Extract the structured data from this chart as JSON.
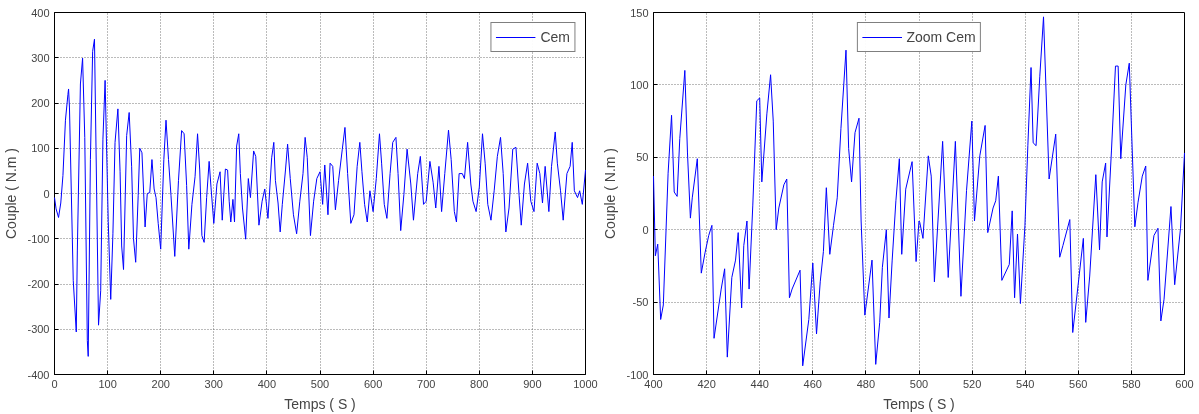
{
  "chart_data": [
    {
      "type": "line",
      "xlabel": "Temps ( S )",
      "ylabel": "Couple ( N.m )",
      "xlim": [
        0,
        1000
      ],
      "ylim": [
        -400,
        400
      ],
      "xticks": [
        0,
        100,
        200,
        300,
        400,
        500,
        600,
        700,
        800,
        900,
        1000
      ],
      "yticks": [
        -400,
        -300,
        -200,
        -100,
        0,
        100,
        200,
        300,
        400
      ],
      "grid": true,
      "legend": "top right",
      "x": [
        0,
        3,
        7.6,
        11.8,
        15.9,
        20.6,
        25.3,
        26.5,
        28.2,
        35.3,
        41,
        43,
        48.8,
        52.9,
        57,
        61.8,
        63.5,
        67.6,
        71.8,
        75.3,
        82.9,
        87,
        91.2,
        95.3,
        101.2,
        105.9,
        110,
        114,
        119.4,
        123.5,
        126.5,
        130,
        135.9,
        140.6,
        145.3,
        148.8,
        152.9,
        157.6,
        160.6,
        164.7,
        170.6,
        174.7,
        179.4,
        183.5,
        187.6,
        191.2,
        195.3,
        200,
        205.9,
        210,
        214.7,
        219.4,
        226.5,
        233.5,
        239.4,
        244.1,
        248.8,
        252.9,
        258.8,
        264.7,
        269.4,
        273.5,
        277.6,
        281.8,
        286.5,
        291.2,
        294.7,
        300,
        305.9,
        311.8,
        315.9,
        321.8,
        326,
        329,
        332,
        336,
        339,
        343,
        347,
        350,
        354,
        360,
        365,
        369,
        375,
        379,
        385,
        391,
        396,
        402,
        409,
        413,
        416,
        421,
        425,
        429,
        435,
        439,
        444,
        450,
        456,
        462,
        468,
        472,
        476,
        482,
        488,
        494,
        500,
        505,
        509,
        515,
        519,
        524,
        529,
        535,
        542,
        547,
        552,
        558,
        564,
        570,
        575,
        579,
        584,
        589,
        594,
        600,
        606,
        612,
        616,
        621,
        626,
        632,
        637,
        643,
        647,
        652,
        658,
        664,
        671,
        676,
        684,
        689,
        695,
        700,
        707,
        713,
        718,
        724,
        729,
        735,
        742,
        747,
        753,
        757,
        762,
        768,
        772,
        778,
        784,
        788,
        794,
        800,
        806,
        811,
        816,
        822,
        828,
        834,
        840,
        845,
        850,
        856,
        863,
        869,
        875,
        879,
        885,
        891,
        897,
        903,
        909,
        914,
        919,
        924,
        931,
        936,
        943,
        947,
        953,
        958,
        965,
        971,
        975,
        979,
        985,
        989,
        994,
        1000
      ],
      "series": [
        {
          "name": "Cem",
          "color": "#0000ff",
          "values": [
            -9,
            -34,
            -53,
            -21,
            40,
            162,
            219,
            231,
            189,
            -192,
            -306,
            -127,
            242,
            299,
            124,
            -325,
            -360,
            75,
            314,
            341,
            -291,
            -215,
            120,
            250,
            -62,
            -234,
            -89,
            113,
            187,
            48,
            -116,
            -168,
            128,
            179,
            59,
            -100,
            -152,
            -5,
            100,
            90,
            -74,
            0,
            2,
            75,
            10,
            -9,
            -66,
            -123,
            75,
            162,
            75,
            -5,
            -139,
            29,
            139,
            132,
            18,
            -123,
            -24,
            37,
            132,
            52,
            -93,
            -108,
            -9,
            71,
            14,
            -66,
            21,
            48,
            -59,
            54,
            52,
            -17,
            -63,
            -13,
            -63,
            105,
            132,
            44,
            -32,
            -101,
            33,
            -9,
            94,
            82,
            -70,
            -17,
            10,
            -55,
            79,
            113,
            29,
            -21,
            -85,
            -24,
            52,
            109,
            33,
            -47,
            -89,
            -17,
            44,
            124,
            79,
            -93,
            -17,
            33,
            48,
            -24,
            63,
            -47,
            67,
            60,
            -36,
            29,
            98,
            146,
            44,
            -66,
            -47,
            60,
            113,
            48,
            -24,
            -63,
            6,
            -40,
            33,
            132,
            67,
            -24,
            -55,
            44,
            113,
            124,
            44,
            -82,
            -2,
            98,
            21,
            -59,
            44,
            82,
            -24,
            -17,
            71,
            25,
            -32,
            60,
            -40,
            44,
            140,
            75,
            -40,
            -63,
            44,
            44,
            33,
            113,
            21,
            -17,
            -40,
            14,
            132,
            67,
            -24,
            -59,
            6,
            82,
            124,
            44,
            -85,
            -32,
            98,
            102,
            -5,
            -70,
            21,
            67,
            -17,
            -40,
            67,
            44,
            -21,
            60,
            -40,
            60,
            136,
            67,
            6,
            -59,
            44,
            60,
            113,
            6,
            -9,
            6,
            -24,
            52
          ]
        }
      ]
    },
    {
      "type": "line",
      "xlabel": "Temps ( S )",
      "ylabel": "Couple ( N.m )",
      "xlim": [
        400,
        600
      ],
      "ylim": [
        -100,
        150
      ],
      "xticks": [
        400,
        420,
        440,
        460,
        480,
        500,
        520,
        540,
        560,
        580,
        600
      ],
      "yticks": [
        -100,
        -50,
        0,
        50,
        100,
        150
      ],
      "grid": true,
      "legend": "top",
      "x": [
        400,
        400.7,
        401.6,
        402.7,
        403.7,
        405.5,
        406.8,
        407.8,
        408.9,
        409.9,
        411.8,
        412.8,
        413.9,
        414.6,
        416.5,
        418,
        419.4,
        420.8,
        422,
        422.8,
        425.5,
        426.8,
        427.8,
        429.5,
        430.9,
        431.9,
        433.2,
        434,
        435.2,
        436,
        437.4,
        438.9,
        440,
        440.8,
        442.7,
        444.1,
        445.1,
        446.2,
        447.2,
        449.1,
        450.2,
        451.2,
        452.2,
        455.2,
        456.2,
        458.5,
        460,
        461.4,
        462.8,
        464,
        465.1,
        466.4,
        467.8,
        469.2,
        470.6,
        472.5,
        473.5,
        474.6,
        475.9,
        477.4,
        478.2,
        479.6,
        482.3,
        483.7,
        485.2,
        486.2,
        487.7,
        488.7,
        489.9,
        491.3,
        492.6,
        493.5,
        495,
        497.4,
        498.9,
        500,
        500.3,
        501.5,
        503.5,
        504.6,
        505.8,
        508.9,
        511,
        513.7,
        515.8,
        517.9,
        519.9,
        520.9,
        522.9,
        524.9,
        525.9,
        527.9,
        528.9,
        529.9,
        531.2,
        534,
        535.1,
        536,
        537.1,
        538.2,
        539.9,
        541,
        542.2,
        543,
        544.1,
        545.5,
        546.9,
        549,
        551.5,
        553,
        554.2,
        556.8,
        557.9,
        559.2,
        561.9,
        562.8,
        564.3,
        566.6,
        568,
        569,
        570.3,
        570.8,
        572.5,
        574,
        575,
        576,
        577.9,
        579.2,
        581.3,
        582.5,
        584.1,
        585.4,
        586.2,
        588.5,
        590,
        591.1,
        592.3,
        594.9,
        596.3,
        598.5,
        600
      ],
      "series": [
        {
          "name": "Zoom Cem",
          "color": "#0000ff",
          "values": [
            37,
            -18,
            -10,
            -62,
            -52,
            39,
            79,
            26,
            23,
            63,
            110,
            53,
            8,
            22,
            49,
            -30,
            -16,
            -4,
            3,
            -75,
            -41,
            -27,
            -88,
            -33,
            -21,
            -2,
            -54,
            -11,
            6,
            -41,
            17,
            89,
            91,
            33,
            80,
            107,
            75,
            0,
            15,
            31,
            35,
            -47,
            -41,
            -28,
            -94,
            -62,
            -23,
            -72,
            -36,
            -15,
            29,
            -17,
            3,
            22,
            70,
            124,
            56,
            33,
            67,
            77,
            6,
            -59,
            -21,
            -93,
            -64,
            -26,
            0,
            -61,
            -21,
            20,
            49,
            -17,
            28,
            47,
            -22,
            6,
            5,
            -6,
            51,
            37,
            -36,
            61,
            -33,
            61,
            -46,
            27,
            75,
            6,
            51,
            72,
            -2,
            15,
            20,
            37,
            -35,
            -24,
            13,
            -47,
            -3,
            -51,
            3,
            58,
            112,
            60,
            58,
            106,
            147,
            35,
            66,
            -19,
            -11,
            7,
            -71,
            -50,
            -6,
            -64,
            -32,
            38,
            -14,
            33,
            46,
            -5,
            55,
            113,
            113,
            49,
            100,
            115,
            2,
            19,
            37,
            44,
            -35,
            -4,
            1,
            -63,
            -48,
            16,
            -38,
            1,
            53
          ]
        }
      ]
    }
  ]
}
